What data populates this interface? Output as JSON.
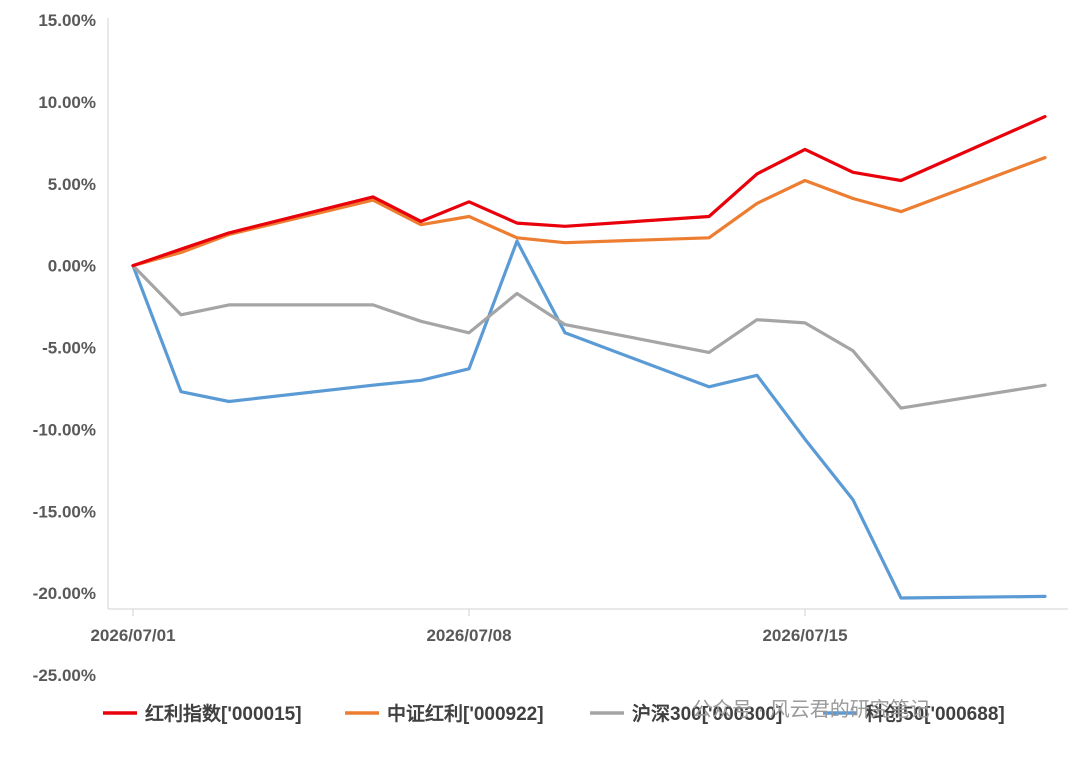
{
  "chart_data": {
    "type": "line",
    "x": [
      "2026/07/01",
      "2026/07/02",
      "2026/07/03",
      "2026/07/06",
      "2026/07/07",
      "2026/07/08",
      "2026/07/09",
      "2026/07/10",
      "2026/07/13",
      "2026/07/14",
      "2026/07/15",
      "2026/07/16",
      "2026/07/17",
      "2026/07/20"
    ],
    "x_tick_labels": [
      "2026/07/01",
      "2026/07/08",
      "2026/07/15"
    ],
    "y_tick_labels": [
      "15.00%",
      "10.00%",
      "5.00%",
      "0.00%",
      "-5.00%",
      "-10.00%",
      "-15.00%",
      "-20.00%",
      "-25.00%"
    ],
    "ylim": [
      -25,
      15
    ],
    "y_unit": "%",
    "grid": false,
    "legend_position": "bottom",
    "series": [
      {
        "name": "红利指数['000015]",
        "color": "#e8000b",
        "values": [
          0.0,
          1.0,
          2.0,
          4.2,
          2.7,
          3.9,
          2.6,
          2.4,
          3.0,
          5.6,
          7.1,
          5.7,
          5.2,
          9.1
        ]
      },
      {
        "name": "中证红利['000922]",
        "color": "#ed7d31",
        "values": [
          0.0,
          0.8,
          1.9,
          4.0,
          2.5,
          3.0,
          1.7,
          1.4,
          1.7,
          3.8,
          5.2,
          4.1,
          3.3,
          6.6
        ]
      },
      {
        "name": "沪深300['000300]",
        "color": "#a5a5a5",
        "values": [
          0.0,
          -3.0,
          -2.4,
          -2.4,
          -3.4,
          -4.1,
          -1.7,
          -3.6,
          -5.3,
          -3.3,
          -3.5,
          -5.2,
          -8.7,
          -7.3
        ]
      },
      {
        "name": "科创50['000688]",
        "color": "#5b9bd5",
        "values": [
          0.0,
          -7.7,
          -8.3,
          -7.3,
          -7.0,
          -6.3,
          1.5,
          -4.1,
          -7.4,
          -6.7,
          -10.6,
          -14.3,
          -20.3,
          -20.2
        ]
      }
    ]
  },
  "watermark": "公众号 · 风云君的研究笔记"
}
